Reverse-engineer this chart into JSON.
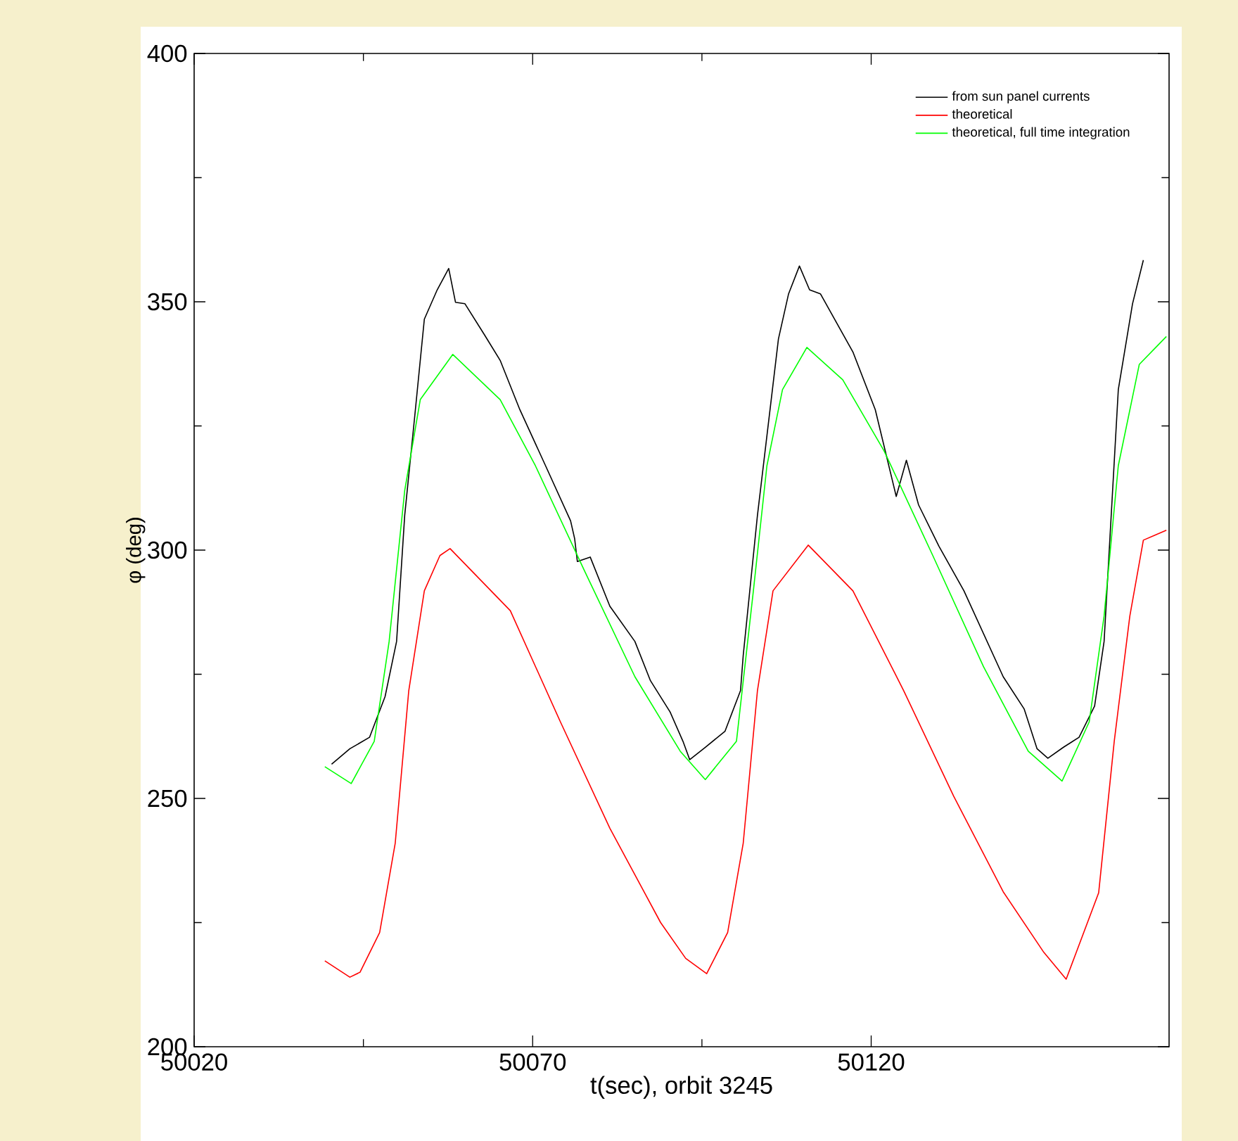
{
  "chart_data": {
    "type": "line",
    "xlabel": "t(sec), orbit 3245",
    "ylabel": "φ (deg)",
    "xlim": [
      50020,
      50164
    ],
    "ylim": [
      200,
      400
    ],
    "xticks": [
      50020,
      50070,
      50120
    ],
    "yticks": [
      200,
      250,
      300,
      350,
      400
    ],
    "legend": "top right",
    "grid": false,
    "marker": "none",
    "line_style": "solid",
    "series": [
      {
        "name": "from sun panel currents",
        "color": "#000000",
        "x": [
          50040.3,
          50043.0,
          50045.9,
          50048.2,
          50049.9,
          50051.1,
          50052.6,
          50054.0,
          50055.9,
          50057.6,
          50058.6,
          50060.0,
          50062.9,
          50065.2,
          50068.1,
          50071.9,
          50075.6,
          50076.2,
          50076.6,
          50078.5,
          50081.4,
          50085.1,
          50087.4,
          50090.3,
          50092.2,
          50093.2,
          50095.5,
          50098.4,
          50100.7,
          50101.1,
          50103.2,
          50106.3,
          50107.8,
          50109.4,
          50110.9,
          50112.5,
          50117.3,
          50120.6,
          50123.7,
          50125.2,
          50127.0,
          50130.0,
          50133.7,
          50139.5,
          50142.6,
          50144.5,
          50146.1,
          50148.4,
          50150.7,
          50153.0,
          50154.4,
          50156.5,
          50158.6,
          50160.2
        ],
        "values": [
          256.9,
          260.0,
          262.3,
          270.5,
          281.6,
          307.0,
          327.2,
          346.5,
          352.4,
          356.7,
          349.9,
          349.6,
          343.3,
          338.2,
          328.3,
          317.0,
          305.9,
          302.3,
          297.7,
          298.6,
          288.7,
          281.6,
          273.7,
          267.4,
          261.5,
          257.8,
          260.3,
          263.5,
          271.7,
          278.8,
          307.0,
          342.5,
          351.6,
          357.2,
          352.4,
          351.6,
          339.9,
          328.3,
          310.8,
          318.1,
          309.1,
          300.8,
          291.8,
          274.5,
          268.0,
          260.0,
          258.1,
          260.3,
          262.3,
          268.6,
          281.6,
          332.3,
          349.6,
          358.4
        ]
      },
      {
        "name": "theoretical",
        "color": "#ff0000",
        "x": [
          50039.3,
          50043.0,
          50044.5,
          50047.4,
          50049.7,
          50051.7,
          50054.0,
          50056.3,
          50057.8,
          50066.7,
          50074.1,
          50081.4,
          50088.9,
          50092.6,
          50095.7,
          50098.8,
          50101.1,
          50103.2,
          50105.5,
          50110.7,
          50117.3,
          50124.8,
          50132.2,
          50139.5,
          50145.5,
          50148.8,
          50153.6,
          50155.9,
          50158.2,
          50160.2,
          50163.6
        ],
        "values": [
          217.3,
          214.0,
          215.0,
          223.0,
          241.0,
          271.7,
          291.8,
          298.9,
          300.3,
          287.8,
          265.4,
          244.0,
          225.0,
          217.8,
          214.7,
          223.0,
          241.0,
          271.7,
          291.8,
          301.0,
          291.8,
          271.7,
          250.4,
          231.2,
          219.0,
          213.6,
          231.0,
          261.5,
          286.7,
          302.0,
          304.0
        ]
      },
      {
        "name": "theoretical, full time integration",
        "color": "#00ff00",
        "x": [
          50039.3,
          50043.2,
          50046.6,
          50048.8,
          50051.1,
          50053.4,
          50058.2,
          50065.2,
          50070.4,
          50077.7,
          50085.1,
          50091.8,
          50095.5,
          50100.1,
          50102.6,
          50104.6,
          50106.9,
          50110.5,
          50115.8,
          50121.9,
          50129.1,
          50136.6,
          50143.2,
          50148.2,
          50152.2,
          50154.4,
          50156.5,
          50159.6,
          50163.6
        ],
        "values": [
          256.4,
          253.0,
          261.5,
          281.6,
          312.0,
          330.3,
          339.4,
          330.3,
          317.0,
          295.7,
          274.5,
          259.5,
          253.8,
          261.5,
          291.8,
          317.0,
          332.3,
          340.8,
          334.3,
          320.0,
          298.9,
          276.5,
          259.5,
          253.5,
          265.4,
          286.7,
          317.0,
          337.4,
          343.0
        ]
      }
    ]
  }
}
